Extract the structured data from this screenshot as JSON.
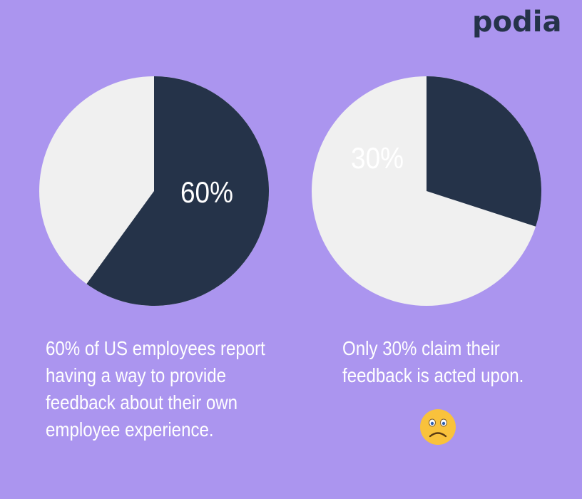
{
  "brand": {
    "logo_text": "podia"
  },
  "colors": {
    "background": "#ab95ef",
    "dark": "#253349",
    "light": "#f0f0f0",
    "text": "#ffffff",
    "emoji_face": "#f9c23c"
  },
  "chart_data": [
    {
      "type": "pie",
      "values": [
        60,
        40
      ],
      "label": "60%"
    },
    {
      "type": "pie",
      "values": [
        30,
        70
      ],
      "label": "30%"
    }
  ],
  "captions": {
    "left_lines": [
      "60% of US employees report",
      "having a way to provide",
      "feedback about their own",
      "employee experience."
    ],
    "right_lines": [
      "Only 30% claim their",
      "feedback is acted upon."
    ]
  },
  "emoji": {
    "icon": "sad-face-icon"
  }
}
